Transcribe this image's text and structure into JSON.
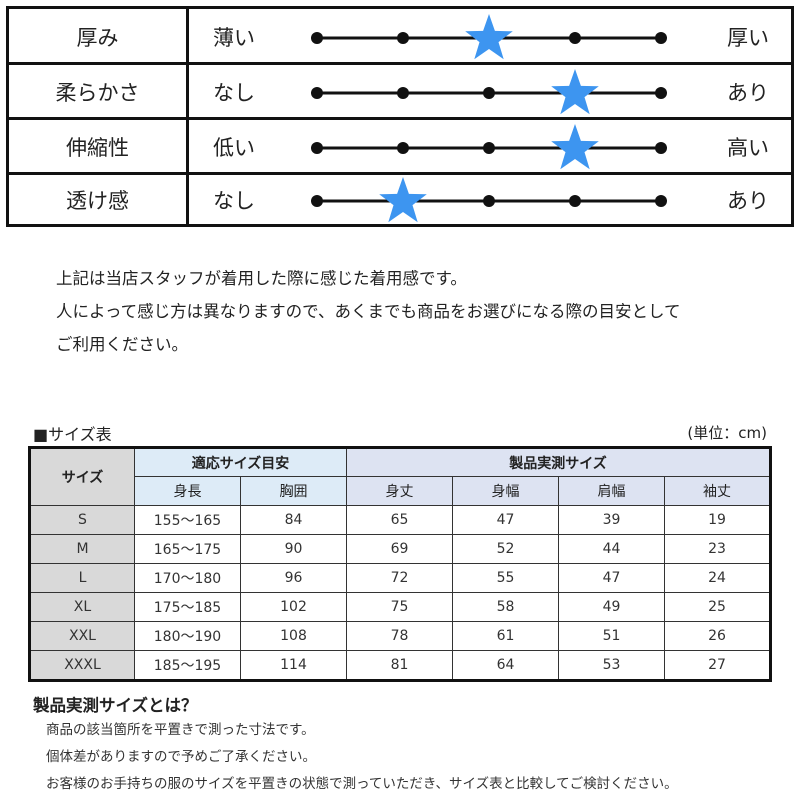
{
  "feel_table": {
    "scale_points": 5,
    "star_color": "#3d95f0",
    "rows": [
      {
        "name": "厚み",
        "low": "薄い",
        "high": "厚い",
        "rating": 3
      },
      {
        "name": "柔らかさ",
        "low": "なし",
        "high": "あり",
        "rating": 4
      },
      {
        "name": "伸縮性",
        "low": "低い",
        "high": "高い",
        "rating": 4
      },
      {
        "name": "透け感",
        "low": "なし",
        "high": "あり",
        "rating": 2
      }
    ]
  },
  "note": {
    "lines": [
      "上記は当店スタッフが着用した際に感じた着用感です。",
      "人によって感じ方は異なりますので、あくまでも商品をお選びになる際の目安として",
      "ご利用ください。"
    ]
  },
  "size_table": {
    "title": "■サイズ表",
    "unit": "(単位：cm)",
    "header": {
      "size_label": "サイズ",
      "fit_group": "適応サイズ目安",
      "measured_group": "製品実測サイズ",
      "columns": [
        "身長",
        "胸囲",
        "身丈",
        "身幅",
        "肩幅",
        "袖丈"
      ]
    },
    "rows": [
      {
        "size": "S",
        "height": "155〜165",
        "chest": "84",
        "length": "65",
        "width": "47",
        "shoulder": "39",
        "sleeve": "19"
      },
      {
        "size": "M",
        "height": "165〜175",
        "chest": "90",
        "length": "69",
        "width": "52",
        "shoulder": "44",
        "sleeve": "23"
      },
      {
        "size": "L",
        "height": "170〜180",
        "chest": "96",
        "length": "72",
        "width": "55",
        "shoulder": "47",
        "sleeve": "24"
      },
      {
        "size": "XL",
        "height": "175〜185",
        "chest": "102",
        "length": "75",
        "width": "58",
        "shoulder": "49",
        "sleeve": "25"
      },
      {
        "size": "XXL",
        "height": "180〜190",
        "chest": "108",
        "length": "78",
        "width": "61",
        "shoulder": "51",
        "sleeve": "26"
      },
      {
        "size": "XXXL",
        "height": "185〜195",
        "chest": "114",
        "length": "81",
        "width": "64",
        "shoulder": "53",
        "sleeve": "27"
      }
    ]
  },
  "explanation": {
    "title": "製品実測サイズとは？",
    "lines": [
      "商品の該当箇所を平置きで測った寸法です。",
      "個体差がありますので予めご了承ください。",
      "お客様のお手持ちの服のサイズを平置きの状態で測っていただき、サイズ表と比較してご検討ください。"
    ]
  }
}
